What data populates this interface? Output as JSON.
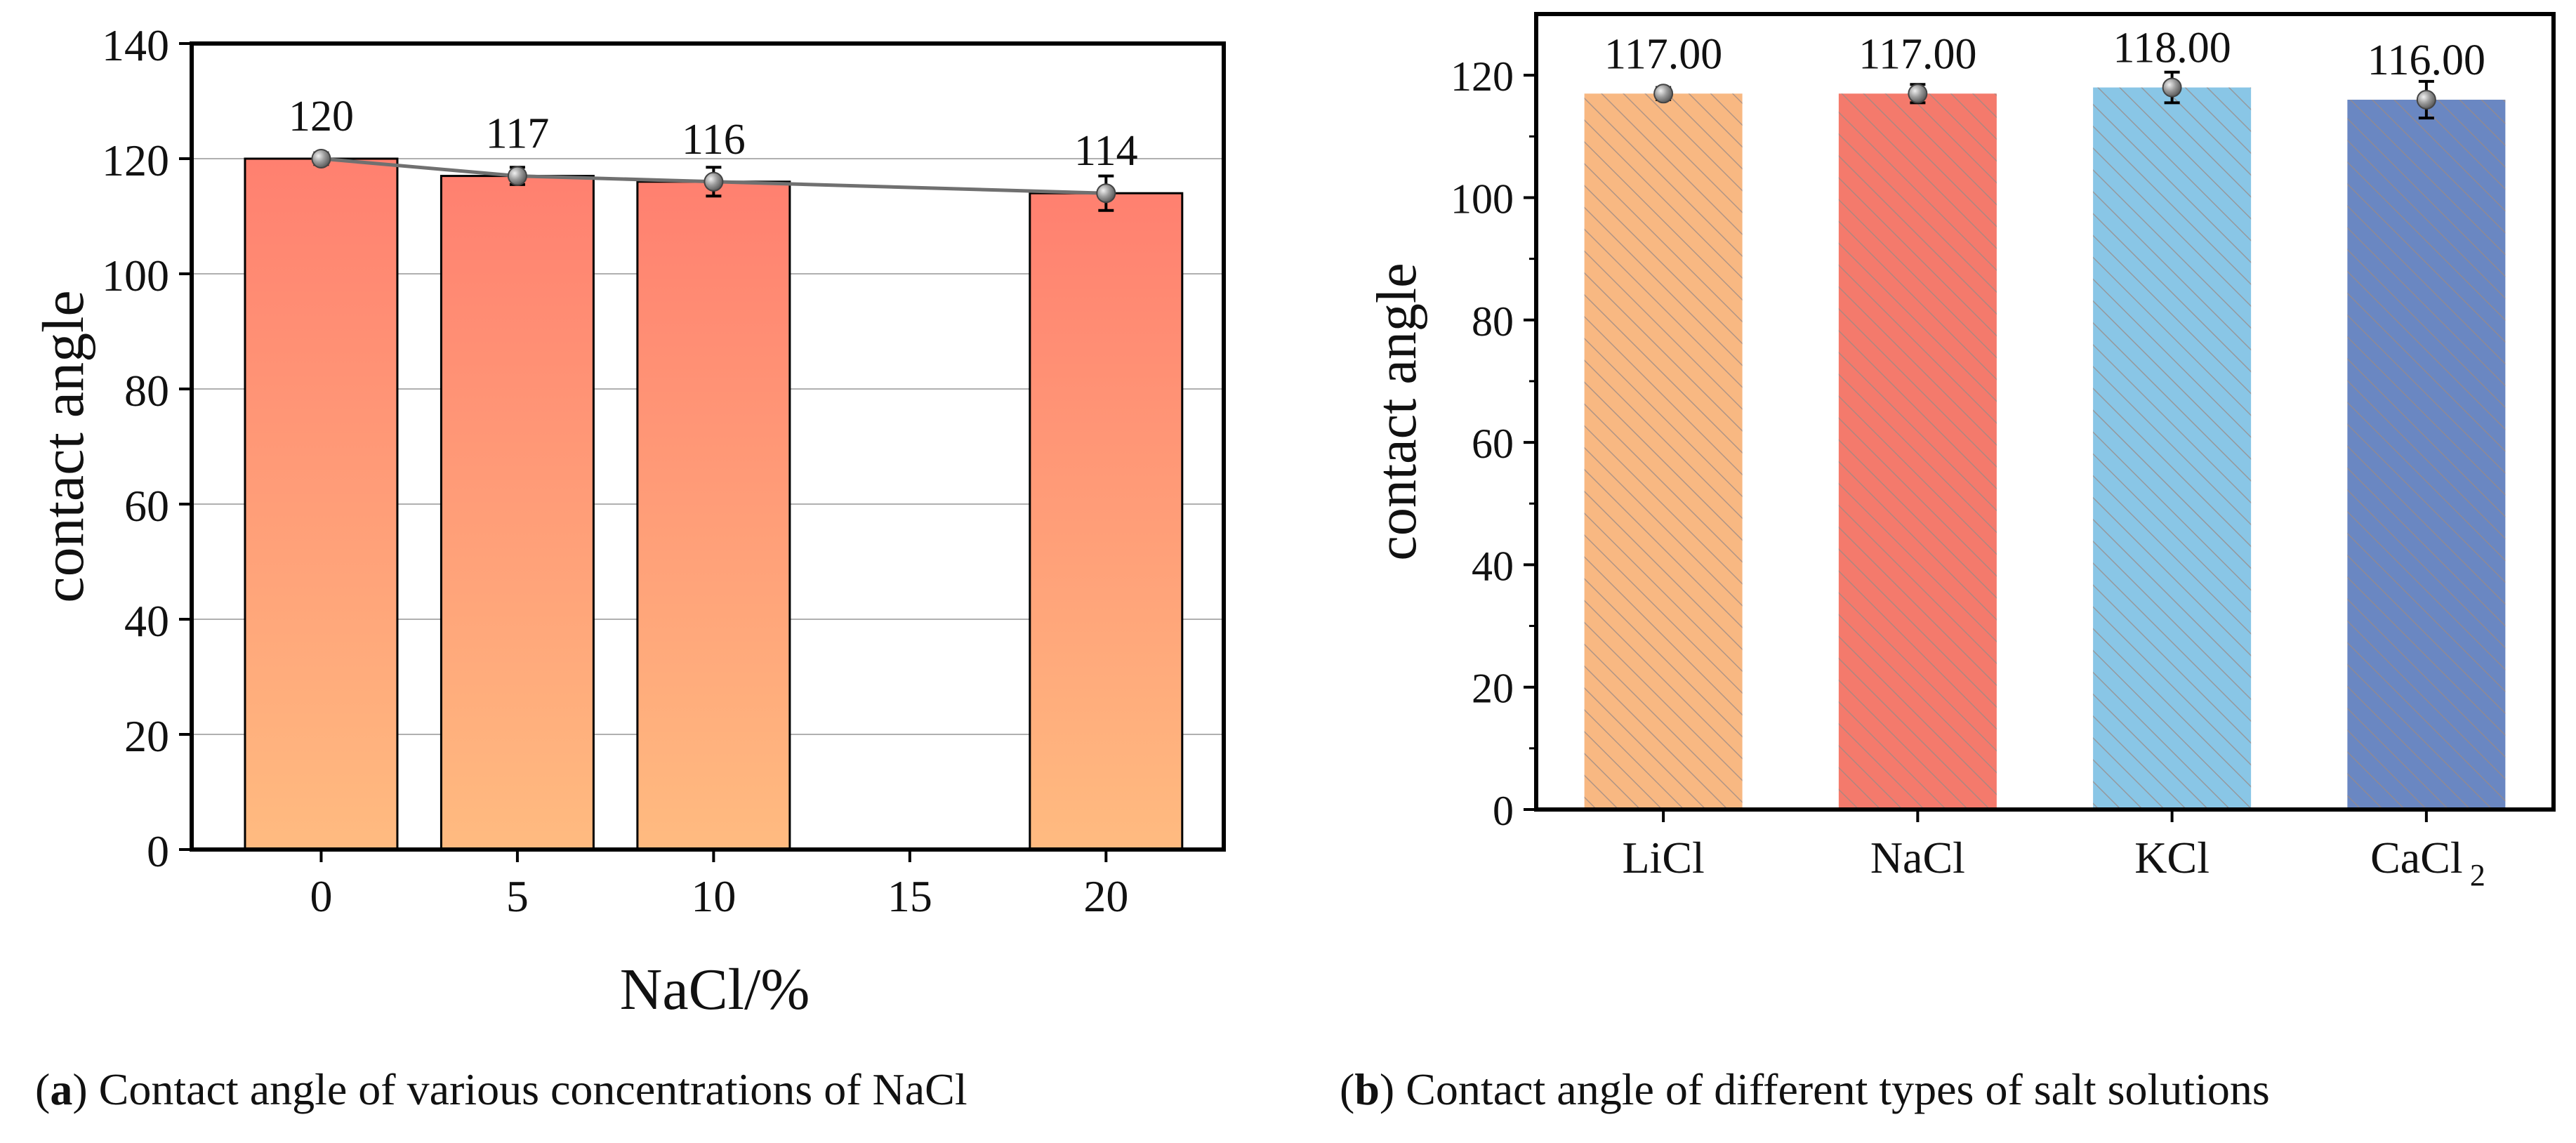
{
  "chart_data": [
    {
      "type": "bar",
      "panel_label": "a",
      "caption": "Contact angle of various concentrations of NaCl",
      "xlabel": "NaCl/%",
      "ylabel": "contact angle",
      "x_ticks": [
        0,
        5,
        10,
        15,
        20
      ],
      "xlim": [
        -3.3,
        23
      ],
      "ylim": [
        0,
        140
      ],
      "y_ticks": [
        0,
        20,
        40,
        60,
        80,
        100,
        120,
        140
      ],
      "grid": true,
      "categories": [
        0,
        5,
        10,
        20
      ],
      "values": [
        120,
        117,
        116,
        114
      ],
      "errors": [
        1,
        1.5,
        2.5,
        3
      ],
      "data_labels": [
        "120",
        "117",
        "116",
        "114"
      ],
      "trend_line": true,
      "colors": {
        "bar_top": "#ff8070",
        "bar_bottom": "#ffbb80",
        "edge": "#000000",
        "line": "#707070",
        "marker": "#888888",
        "grid": "#b0b0b0"
      }
    },
    {
      "type": "bar",
      "panel_label": "b",
      "caption": "Contact angle of different types of salt solutions",
      "xlabel": "",
      "ylabel": "contact angle",
      "ylim": [
        0,
        130
      ],
      "y_ticks": [
        0,
        20,
        40,
        60,
        80,
        100,
        120
      ],
      "grid": false,
      "categories": [
        "LiCl",
        "NaCl",
        "KCl",
        "CaCl"
      ],
      "category_subscripts": [
        "",
        "",
        "",
        "2"
      ],
      "values": [
        117,
        117,
        118,
        116
      ],
      "errors": [
        1,
        1.5,
        2.5,
        3
      ],
      "data_labels": [
        "117.00",
        "117.00",
        "118.00",
        "116.00"
      ],
      "colors": {
        "bars": [
          "#f8b882",
          "#f47a6c",
          "#89c6e6",
          "#6a87c2"
        ],
        "hatch": "#b08f80",
        "marker": "#888888"
      }
    }
  ]
}
